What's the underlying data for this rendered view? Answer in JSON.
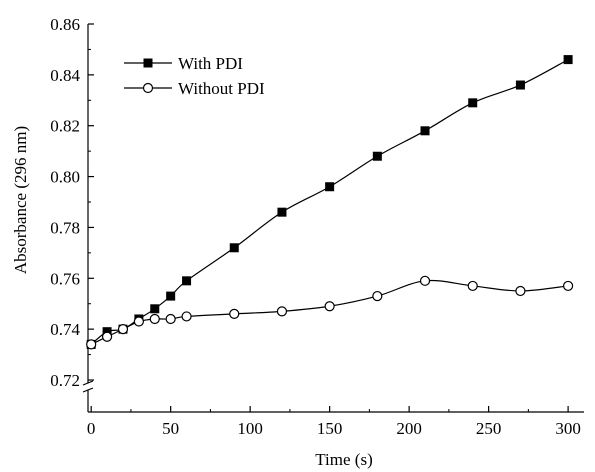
{
  "chart_data": {
    "type": "line",
    "title": "",
    "xlabel": "Time (s)",
    "ylabel": "Absorbance (296 nm)",
    "xlim": [
      -2,
      310
    ],
    "ylim": [
      0.72,
      0.86
    ],
    "xticks": [
      0,
      50,
      100,
      150,
      200,
      250,
      300
    ],
    "xtick_labels": [
      "0",
      "50",
      "100",
      "150",
      "200",
      "250",
      "300"
    ],
    "yticks": [
      0.72,
      0.74,
      0.76,
      0.78,
      0.8,
      0.82,
      0.84,
      0.86
    ],
    "ytick_labels": [
      "0.72",
      "0.74",
      "0.76",
      "0.78",
      "0.80",
      "0.82",
      "0.84",
      "0.86"
    ],
    "y_axis_break": true,
    "grid": false,
    "legend_position": "top-left",
    "series": [
      {
        "name": "With PDI",
        "marker": "filled-square",
        "color": "#000000",
        "x": [
          0,
          10,
          20,
          30,
          40,
          50,
          60,
          90,
          120,
          150,
          180,
          210,
          240,
          270,
          300
        ],
        "y": [
          0.734,
          0.739,
          0.74,
          0.744,
          0.748,
          0.753,
          0.759,
          0.772,
          0.786,
          0.796,
          0.808,
          0.818,
          0.829,
          0.836,
          0.846
        ]
      },
      {
        "name": "Without PDI",
        "marker": "open-circle",
        "color": "#000000",
        "x": [
          0,
          10,
          20,
          30,
          40,
          50,
          60,
          90,
          120,
          150,
          180,
          210,
          240,
          270,
          300
        ],
        "y": [
          0.734,
          0.737,
          0.74,
          0.743,
          0.744,
          0.744,
          0.745,
          0.746,
          0.747,
          0.749,
          0.753,
          0.759,
          0.757,
          0.755,
          0.757
        ]
      }
    ]
  }
}
